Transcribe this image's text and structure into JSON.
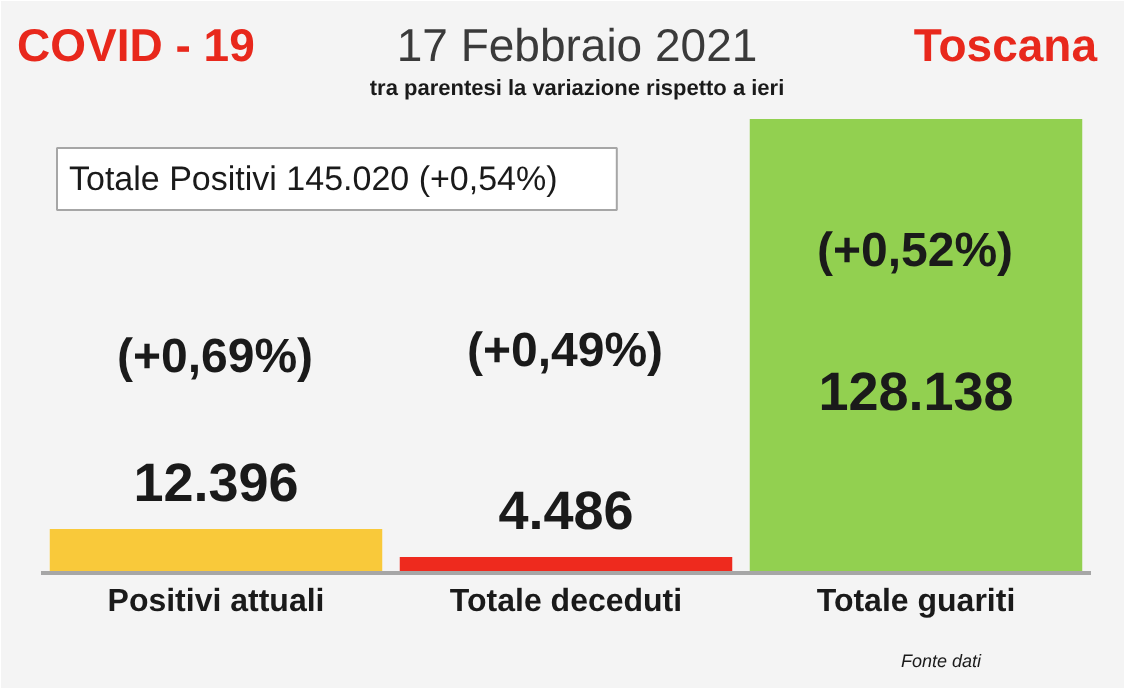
{
  "chart_data": {
    "type": "bar",
    "title": "17 Febbraio 2021",
    "subtitle": "tra parentesi la variazione rispetto a ieri",
    "categories": [
      "Positivi attuali",
      "Totale deceduti",
      "Totale guariti"
    ],
    "values": [
      12396,
      4486,
      128138
    ],
    "colors": [
      "#f9c93a",
      "#ee2a1e",
      "#92d050"
    ],
    "value_labels": [
      "12.396",
      "4.486",
      "128.138"
    ],
    "annotations": [
      "COVID - 19",
      "Toscana",
      "Totale Positivi      145.020 (+0,54%)",
      "Fonte dati",
      "(+0,69%)",
      "(+0,49%)",
      "(+0,52%)"
    ]
  }
}
